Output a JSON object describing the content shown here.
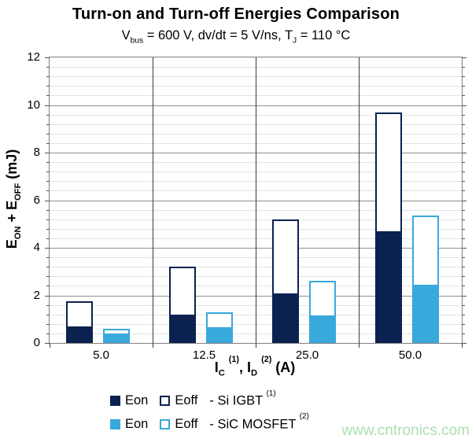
{
  "header": {
    "title": "Turn-on and Turn-off Energies Comparison",
    "subtitle_parts": [
      "V",
      "bus",
      " = 600 V, dv/dt = 5 V/ns, T",
      "J",
      " = 110 °C"
    ]
  },
  "axes": {
    "y_title_parts": [
      "E",
      "ON",
      " + E",
      "OFF",
      " (mJ)"
    ],
    "x_title_parts": [
      "I",
      "C",
      "(1)",
      ", I",
      "D",
      "(2)",
      " (A)"
    ]
  },
  "legend": {
    "rows": [
      {
        "eon_label": "Eon",
        "eoff_label": "Eoff",
        "series_label": "- Si IGBT",
        "series_sup": "(1)",
        "color": "#0b2150"
      },
      {
        "eon_label": "Eon",
        "eoff_label": "Eoff",
        "series_label": "- SiC MOSFET",
        "series_sup": "(2)",
        "color": "#39a8db"
      }
    ]
  },
  "watermark": {
    "text": "www.cntronics.com",
    "color": "#abdfb3"
  },
  "chart_data": {
    "type": "bar",
    "stacked": true,
    "title": "Turn-on and Turn-off Energies Comparison",
    "subtitle": "Vbus = 600 V, dv/dt = 5 V/ns, TJ = 110 °C",
    "xlabel": "IC (1), ID (2) (A)",
    "ylabel": "EON + EOFF (mJ)",
    "categories": [
      "5.0",
      "12.5",
      "25.0",
      "50.0"
    ],
    "series": [
      {
        "name": "Eon - Si IGBT (1)",
        "stack": "si-igbt",
        "style": "filled",
        "color": "#0b2150",
        "values": [
          0.7,
          1.2,
          2.1,
          4.7
        ]
      },
      {
        "name": "Eoff - Si IGBT (1)",
        "stack": "si-igbt",
        "style": "outlined",
        "color": "#0b2150",
        "values": [
          1.05,
          2.0,
          3.1,
          5.0
        ]
      },
      {
        "name": "Eon - SiC MOSFET (2)",
        "stack": "sic-mosfet",
        "style": "filled",
        "color": "#39a8db",
        "values": [
          0.4,
          0.65,
          1.15,
          2.45
        ]
      },
      {
        "name": "Eoff - SiC MOSFET (2)",
        "stack": "sic-mosfet",
        "style": "outlined",
        "color": "#39a8db",
        "values": [
          0.2,
          0.65,
          1.45,
          2.9
        ]
      }
    ],
    "stack_totals": {
      "si-igbt": [
        1.75,
        3.2,
        5.2,
        9.7
      ],
      "sic-mosfet": [
        0.6,
        1.3,
        2.6,
        5.35
      ]
    },
    "ylim": [
      0,
      12
    ],
    "y_major_tick": 2,
    "y_minor_tick": 0.4,
    "y_tick_labels": [
      "0",
      "2",
      "4",
      "6",
      "8",
      "10",
      "12"
    ],
    "grid": "horizontal major+minor, vertical category separators",
    "legend_position": "below"
  }
}
